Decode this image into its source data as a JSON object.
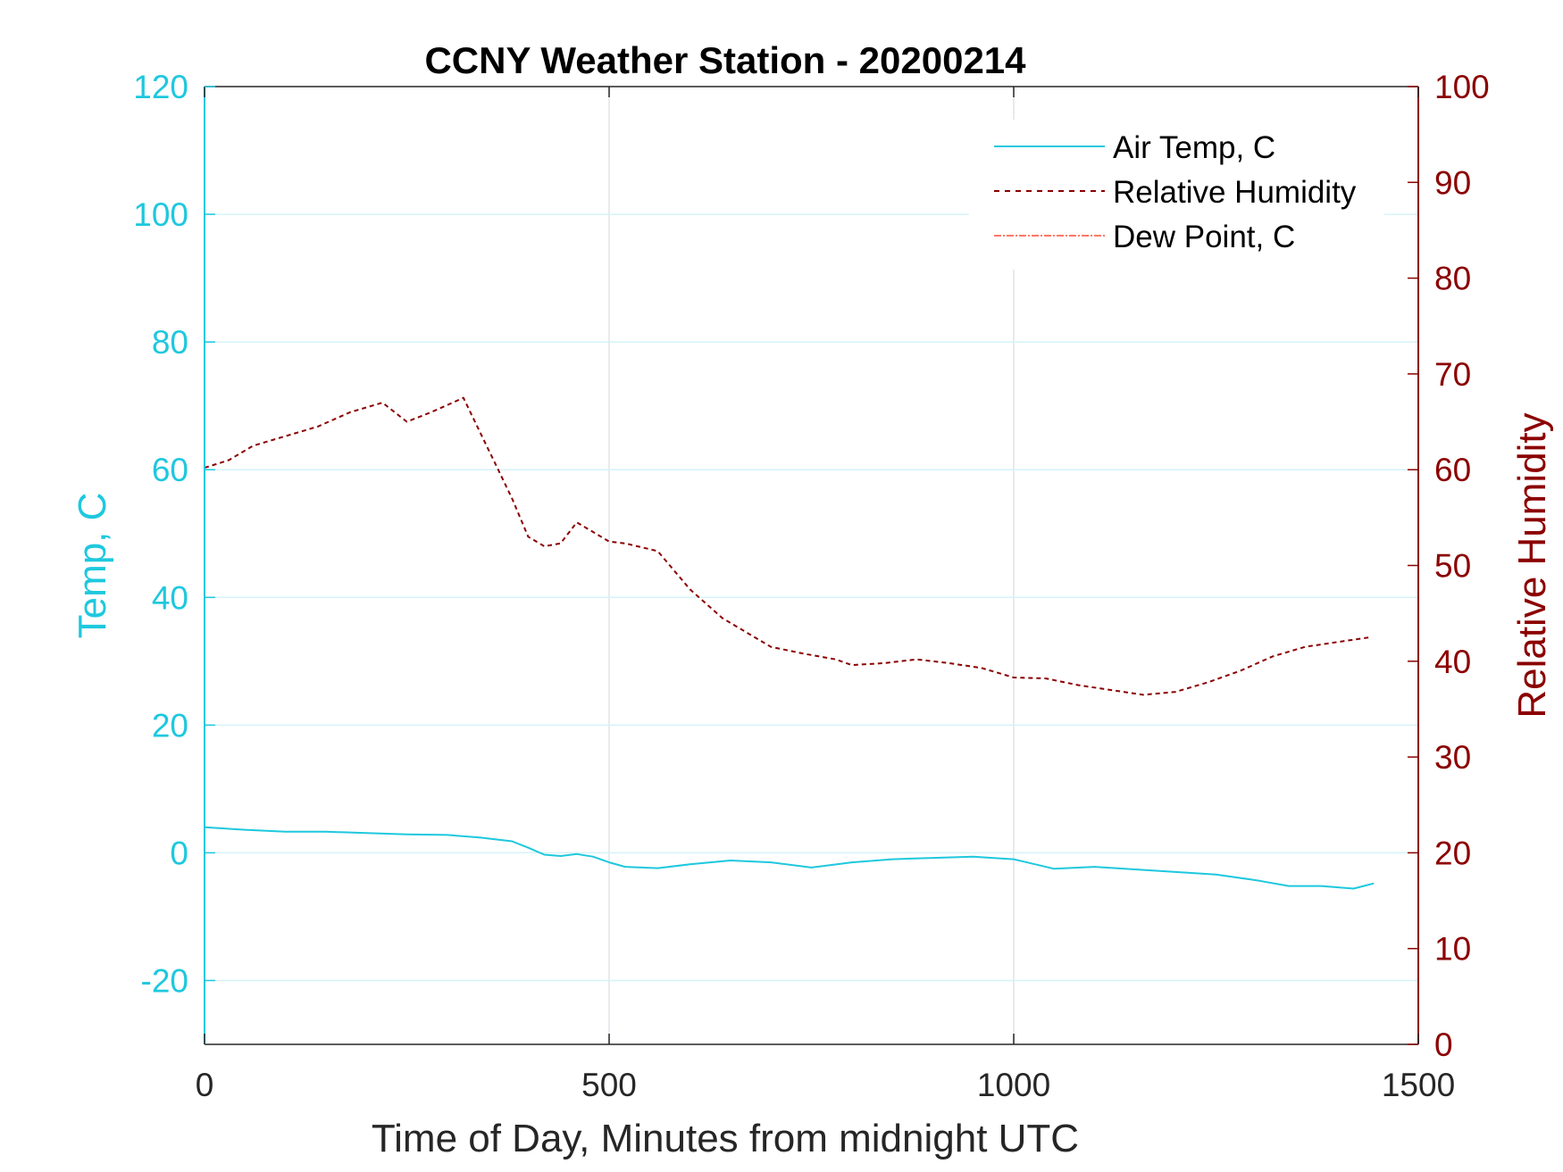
{
  "chart_data": {
    "type": "line",
    "title": "CCNY Weather Station - 20200214",
    "xlabel": "Time of Day, Minutes from midnight UTC",
    "ylabel_left": "Temp, C",
    "ylabel_right": "Relative Humidity",
    "xlim": [
      0,
      1500
    ],
    "ylim_left": [
      -30,
      120
    ],
    "ylim_right": [
      0,
      100
    ],
    "x_ticks": [
      0,
      500,
      1000,
      1500
    ],
    "y_left_ticks": [
      -20,
      0,
      20,
      40,
      60,
      80,
      100,
      120
    ],
    "y_right_ticks": [
      0,
      10,
      20,
      30,
      40,
      50,
      60,
      70,
      80,
      90,
      100
    ],
    "grid": true,
    "legend_location": "top-right",
    "colors": {
      "left_axis": "#1ec8de",
      "right_axis": "#8b0000",
      "air_temp": "#1ec8de",
      "relative_humidity": "#8b0000",
      "dew_point": "#ff4b33"
    },
    "series": [
      {
        "name": "Air Temp, C",
        "axis": "left",
        "style": "solid",
        "x": [
          0,
          50,
          100,
          150,
          200,
          250,
          300,
          340,
          380,
          400,
          420,
          440,
          460,
          480,
          500,
          520,
          560,
          600,
          650,
          700,
          750,
          800,
          850,
          900,
          950,
          1000,
          1050,
          1100,
          1150,
          1200,
          1250,
          1300,
          1340,
          1380,
          1420,
          1445
        ],
        "y": [
          4,
          3.6,
          3.3,
          3.3,
          3.1,
          2.9,
          2.8,
          2.4,
          1.8,
          0.8,
          -0.3,
          -0.5,
          -0.2,
          -0.6,
          -1.5,
          -2.2,
          -2.4,
          -1.8,
          -1.2,
          -1.5,
          -2.3,
          -1.5,
          -1.0,
          -0.8,
          -0.6,
          -1.0,
          -2.5,
          -2.2,
          -2.6,
          -3.0,
          -3.4,
          -4.3,
          -5.2,
          -5.2,
          -5.6,
          -4.8
        ]
      },
      {
        "name": "Relative Humidity",
        "axis": "right",
        "style": "dashed",
        "x": [
          0,
          30,
          60,
          100,
          140,
          180,
          220,
          250,
          280,
          320,
          340,
          360,
          380,
          400,
          420,
          440,
          460,
          480,
          500,
          520,
          560,
          600,
          640,
          680,
          700,
          740,
          780,
          800,
          840,
          880,
          920,
          960,
          1000,
          1040,
          1080,
          1120,
          1160,
          1200,
          1240,
          1280,
          1320,
          1360,
          1400,
          1440
        ],
        "y": [
          60.2,
          61,
          62.5,
          63.5,
          64.5,
          66,
          67,
          65,
          66,
          67.5,
          64,
          60.5,
          57,
          53,
          52,
          52.3,
          54.5,
          53.5,
          52.5,
          52.3,
          51.5,
          47.5,
          44.5,
          42.5,
          41.5,
          40.8,
          40.2,
          39.6,
          39.8,
          40.2,
          39.8,
          39.3,
          38.3,
          38.2,
          37.5,
          37.0,
          36.5,
          36.8,
          37.8,
          39.0,
          40.5,
          41.5,
          42.0,
          42.5
        ]
      },
      {
        "name": "Dew Point, C",
        "axis": "left",
        "style": "dash-dot",
        "x": [],
        "y": []
      }
    ]
  }
}
